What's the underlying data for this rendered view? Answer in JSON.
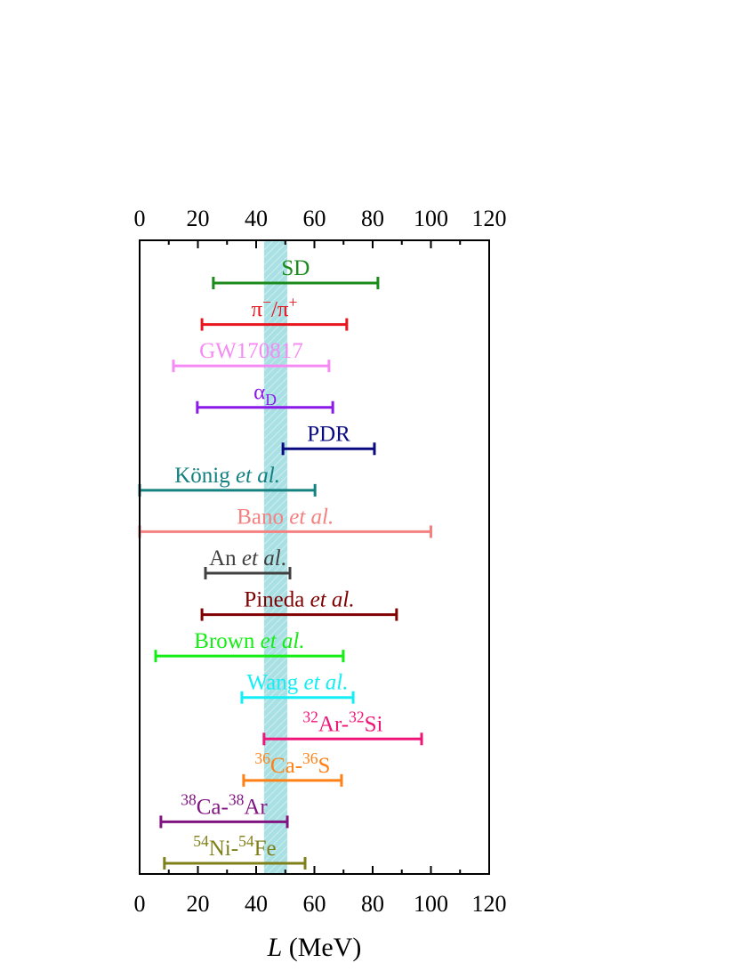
{
  "chart_data": {
    "type": "range",
    "xlabel": [
      {
        "text": "L",
        "italic": true
      },
      {
        "text": " (MeV)"
      }
    ],
    "xlim": [
      0,
      120
    ],
    "xticks": [
      0,
      20,
      40,
      60,
      80,
      100,
      120
    ],
    "band": {
      "range": [
        42.7,
        50.7
      ],
      "color": "#a8e0e4"
    },
    "series": [
      {
        "name": [
          {
            "text": "SD"
          }
        ],
        "color": "#1a8a1a",
        "values": [
          25.3,
          81.8
        ]
      },
      {
        "name": [
          {
            "text": "π"
          },
          {
            "text": "−",
            "sup": true
          },
          {
            "text": "/π"
          },
          {
            "text": "+",
            "sup": true
          }
        ],
        "color": "#e8141e",
        "values": [
          21.4,
          71.1
        ]
      },
      {
        "name": [
          {
            "text": "GW170817"
          }
        ],
        "color": "#f58af5",
        "values": [
          11.6,
          65.0
        ]
      },
      {
        "name": [
          {
            "text": "α"
          },
          {
            "text": "D",
            "sub": true
          }
        ],
        "color": "#8b1ae8",
        "values": [
          19.8,
          66.3
        ]
      },
      {
        "name": [
          {
            "text": "PDR"
          }
        ],
        "color": "#0a0a80",
        "values": [
          49.2,
          80.6
        ]
      },
      {
        "name": [
          {
            "text": "König "
          },
          {
            "text": "et al.",
            "italic": true
          }
        ],
        "color": "#148080",
        "values": [
          0,
          60.2
        ]
      },
      {
        "name": [
          {
            "text": "Bano "
          },
          {
            "text": "et al.",
            "italic": true
          }
        ],
        "color": "#f58080",
        "values": [
          0,
          100
        ]
      },
      {
        "name": [
          {
            "text": "An "
          },
          {
            "text": "et al",
            "italic": true
          },
          {
            "text": "."
          }
        ],
        "color": "#404040",
        "values": [
          22.6,
          51.6
        ]
      },
      {
        "name": [
          {
            "text": "Pineda "
          },
          {
            "text": "et al.",
            "italic": true
          }
        ],
        "color": "#800000",
        "values": [
          21.4,
          88.2
        ]
      },
      {
        "name": [
          {
            "text": "Brown "
          },
          {
            "text": "et al.",
            "italic": true
          }
        ],
        "color": "#14ee14",
        "values": [
          5.5,
          69.9
        ]
      },
      {
        "name": [
          {
            "text": "Wang "
          },
          {
            "text": "et al.",
            "italic": true
          }
        ],
        "color": "#14eef5",
        "values": [
          35.1,
          73.3
        ]
      },
      {
        "name": [
          {
            "text": "32",
            "sup": true
          },
          {
            "text": "Ar-"
          },
          {
            "text": "32",
            "sup": true
          },
          {
            "text": "Si"
          }
        ],
        "color": "#f01478",
        "values": [
          42.7,
          96.8
        ]
      },
      {
        "name": [
          {
            "text": "36",
            "sup": true
          },
          {
            "text": "Ca-"
          },
          {
            "text": "36",
            "sup": true
          },
          {
            "text": "S"
          }
        ],
        "color": "#ff8014",
        "values": [
          35.7,
          69.3
        ]
      },
      {
        "name": [
          {
            "text": "38",
            "sup": true
          },
          {
            "text": "Ca-"
          },
          {
            "text": "38",
            "sup": true
          },
          {
            "text": "Ar"
          }
        ],
        "color": "#801480",
        "values": [
          7.3,
          50.7
        ]
      },
      {
        "name": [
          {
            "text": "54",
            "sup": true
          },
          {
            "text": "Ni-"
          },
          {
            "text": "54",
            "sup": true
          },
          {
            "text": "Fe"
          }
        ],
        "color": "#80801a",
        "values": [
          8.5,
          56.8
        ]
      }
    ]
  }
}
